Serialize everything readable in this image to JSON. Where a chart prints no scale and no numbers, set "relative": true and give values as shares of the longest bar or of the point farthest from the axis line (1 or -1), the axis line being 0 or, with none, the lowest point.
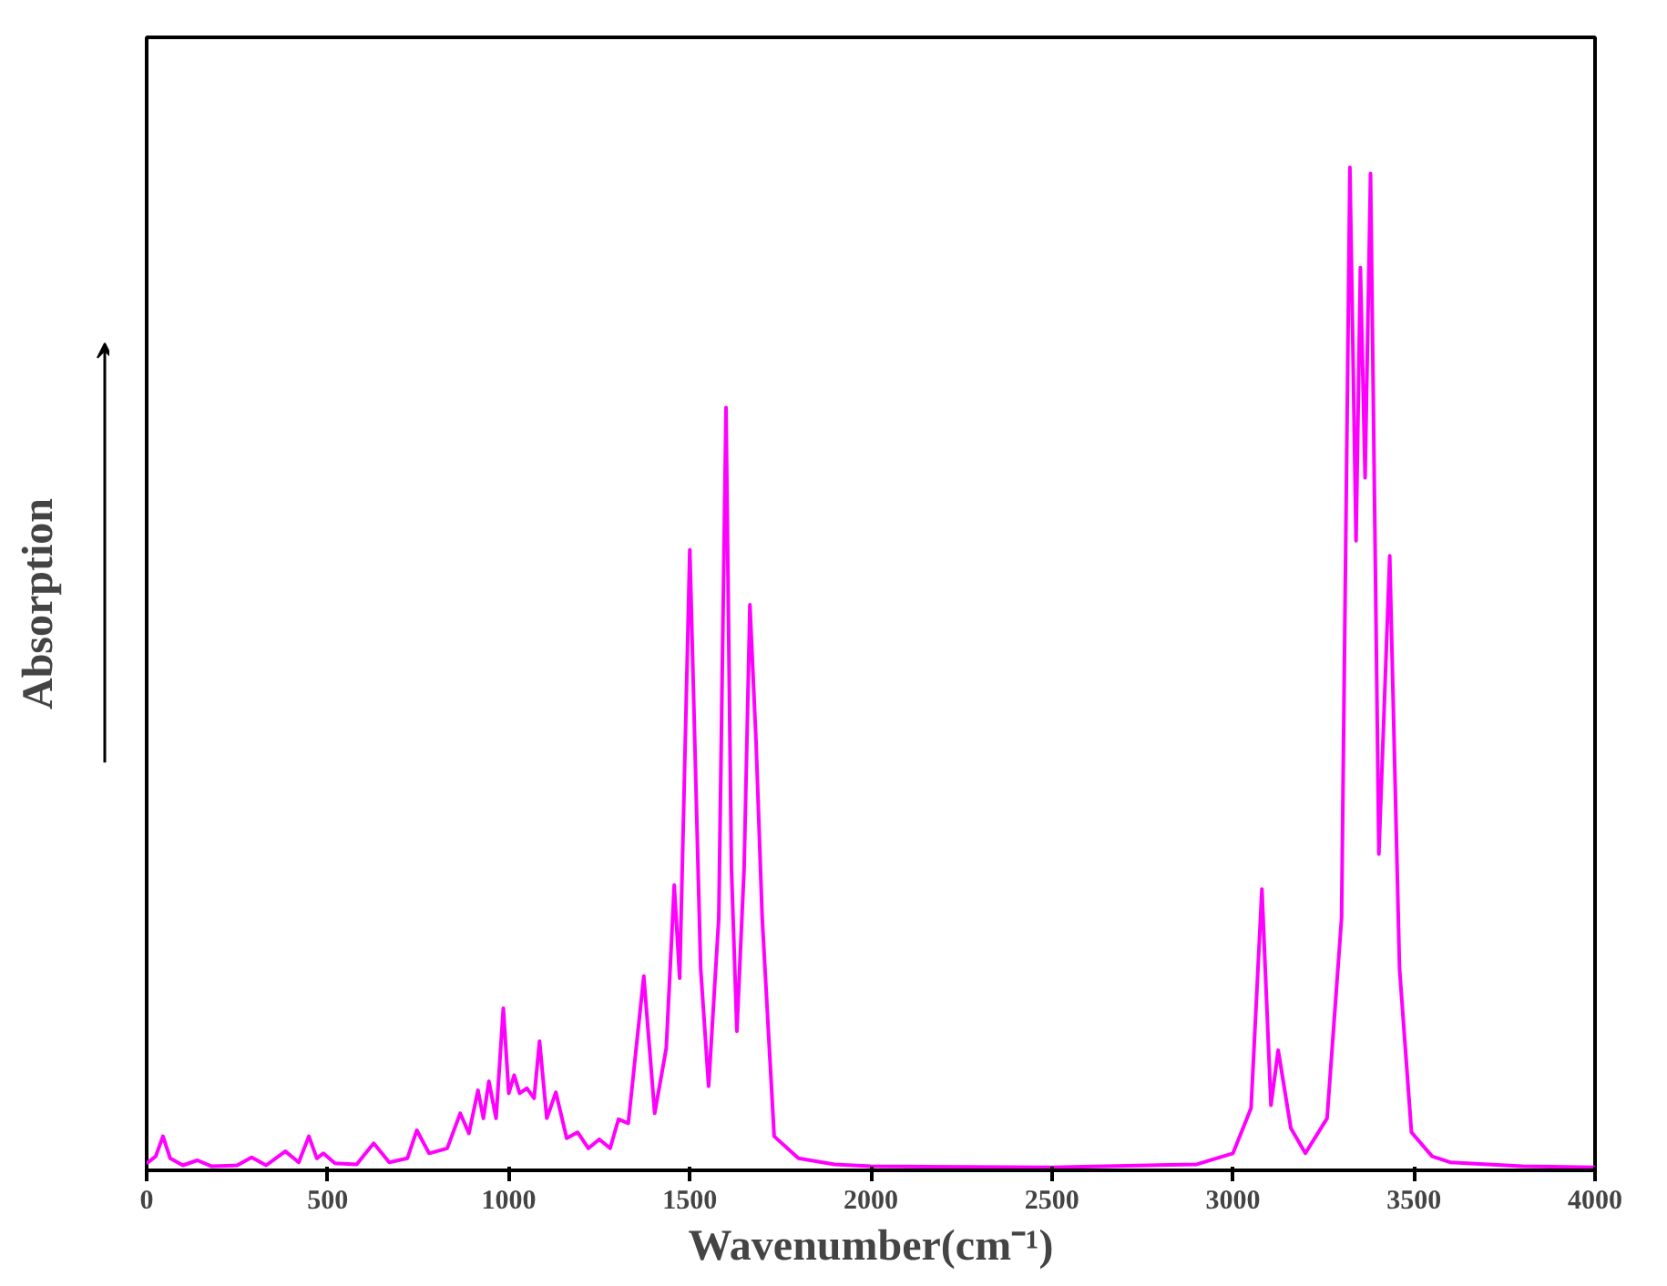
{
  "chart_data": {
    "type": "line",
    "relative": true,
    "xlabel": "Wavenumber(cm⁻¹)",
    "ylabel": "Absorption",
    "xlim": [
      0,
      4000
    ],
    "xticks": [
      0,
      500,
      1000,
      1500,
      2000,
      2500,
      3000,
      3500,
      4000
    ],
    "grid": false,
    "marker": "none",
    "line_style": "solid",
    "series": [
      {
        "color": "#ff00ff",
        "x": [
          0,
          25,
          45,
          65,
          100,
          140,
          180,
          250,
          290,
          330,
          383,
          420,
          448,
          470,
          488,
          520,
          580,
          627,
          670,
          720,
          746,
          780,
          830,
          866,
          890,
          915,
          930,
          945,
          965,
          985,
          1000,
          1015,
          1030,
          1050,
          1070,
          1085,
          1105,
          1130,
          1160,
          1190,
          1220,
          1250,
          1280,
          1303,
          1330,
          1373,
          1403,
          1435,
          1457,
          1472,
          1500,
          1530,
          1552,
          1580,
          1600,
          1615,
          1630,
          1650,
          1666,
          1683,
          1700,
          1733,
          1800,
          1900,
          2000,
          2500,
          2900,
          3000,
          3050,
          3080,
          3105,
          3125,
          3160,
          3200,
          3260,
          3300,
          3323,
          3340,
          3352,
          3365,
          3380,
          3403,
          3433,
          3460,
          3493,
          3550,
          3600,
          3800,
          4000
        ],
        "values": [
          0.005,
          0.012,
          0.032,
          0.01,
          0.003,
          0.008,
          0.002,
          0.003,
          0.011,
          0.003,
          0.017,
          0.006,
          0.032,
          0.01,
          0.015,
          0.005,
          0.004,
          0.025,
          0.006,
          0.01,
          0.038,
          0.015,
          0.02,
          0.055,
          0.035,
          0.078,
          0.05,
          0.087,
          0.05,
          0.16,
          0.075,
          0.093,
          0.075,
          0.08,
          0.07,
          0.127,
          0.05,
          0.076,
          0.03,
          0.036,
          0.02,
          0.029,
          0.02,
          0.049,
          0.045,
          0.192,
          0.055,
          0.12,
          0.283,
          0.19,
          0.618,
          0.2,
          0.082,
          0.25,
          0.76,
          0.3,
          0.137,
          0.3,
          0.563,
          0.426,
          0.25,
          0.032,
          0.01,
          0.004,
          0.002,
          0.001,
          0.004,
          0.015,
          0.06,
          0.279,
          0.063,
          0.118,
          0.04,
          0.015,
          0.05,
          0.25,
          1.0,
          0.627,
          0.9,
          0.69,
          0.994,
          0.314,
          0.612,
          0.2,
          0.036,
          0.012,
          0.006,
          0.002,
          0.001
        ]
      }
    ]
  }
}
